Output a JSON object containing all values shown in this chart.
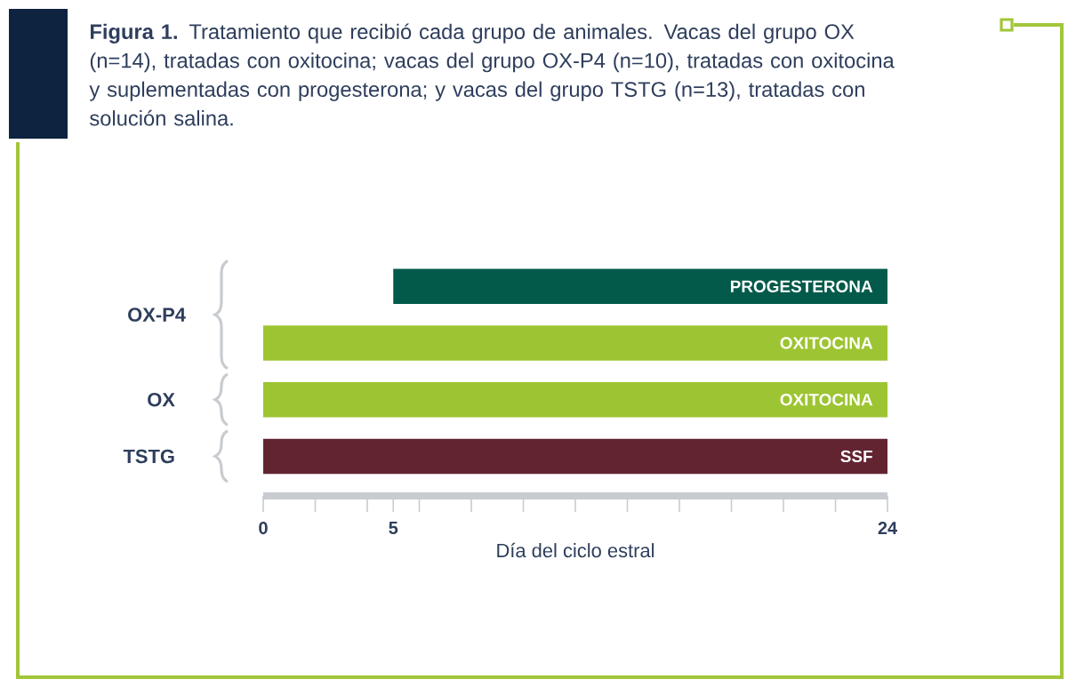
{
  "chart_data": {
    "type": "bar",
    "orientation": "horizontal",
    "title": "**Figura 1.** Tratamiento que recibió cada grupo de animales. Vacas del grupo OX (n=14), tratadas con oxitocina; vacas del grupo OX-P4 (n=10), tratadas con oxitocina y suplementadas con progesterona; y vacas del grupo TSTG (n=13), tratadas con solución salina.",
    "xlabel": "Día del ciclo estral",
    "categories": [
      null,
      null,
      "OX",
      "TSTG"
    ],
    "annotations": [
      "OX-P4"
    ],
    "base": [
      5,
      0,
      0,
      0
    ],
    "values": [
      19,
      24,
      24,
      24
    ],
    "colors": [
      "#035a4b",
      "#9dc432",
      "#9dc432",
      "#632432"
    ],
    "value_labels": [
      "PROGESTERONA",
      "OXITOCINA",
      "OXITOCINA",
      "SSF"
    ],
    "xlim": [
      0,
      24
    ],
    "xticks": [
      0,
      {
        "value": 2,
        "label": null
      },
      {
        "value": 4,
        "label": null
      },
      5,
      {
        "value": 6,
        "label": null
      },
      {
        "value": 8,
        "label": null
      },
      {
        "value": 10,
        "label": null
      },
      {
        "value": 12,
        "label": null
      },
      {
        "value": 14,
        "label": null
      },
      {
        "value": 16,
        "label": null
      },
      {
        "value": 18,
        "label": null
      },
      {
        "value": 20,
        "label": null
      },
      {
        "value": 22,
        "label": null
      },
      24
    ]
  }
}
